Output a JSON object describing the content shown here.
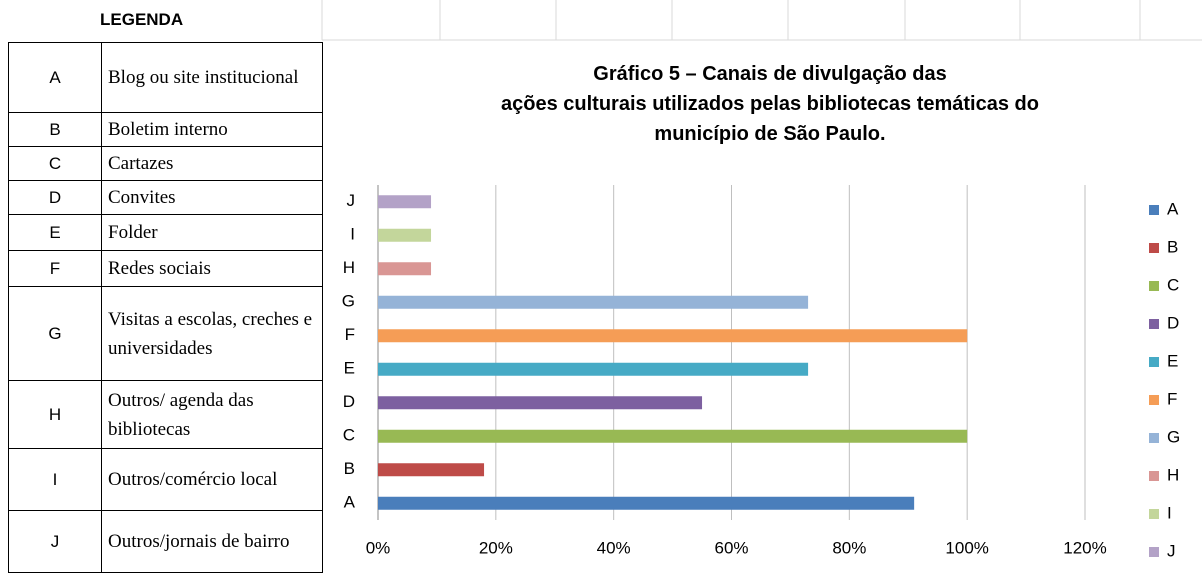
{
  "legend_table": {
    "header": "LEGENDA",
    "rows": [
      [
        "A",
        "Blog ou site institucional"
      ],
      [
        "B",
        "Boletim interno"
      ],
      [
        "C",
        "Cartazes"
      ],
      [
        "D",
        "Convites"
      ],
      [
        "E",
        "Folder"
      ],
      [
        "F",
        "Redes sociais"
      ],
      [
        "G",
        "Visitas a escolas, creches e universidades"
      ],
      [
        "H",
        "Outros/ agenda das bibliotecas"
      ],
      [
        "I",
        "Outros/comércio local"
      ],
      [
        "J",
        "Outros/jornais de bairro"
      ]
    ]
  },
  "chart_data": {
    "type": "bar",
    "orientation": "horizontal",
    "title": "Gráfico 5 – Canais de divulgação das ações culturais utilizados pelas bibliotecas temáticas do município de São Paulo.",
    "categories": [
      "A",
      "B",
      "C",
      "D",
      "E",
      "F",
      "G",
      "H",
      "I",
      "J"
    ],
    "values": [
      91,
      18,
      100,
      55,
      73,
      100,
      73,
      9,
      9,
      9
    ],
    "colors": [
      "#4a7ebb",
      "#be4b48",
      "#98b954",
      "#7d60a0",
      "#46aac5",
      "#f59d56",
      "#95b3d7",
      "#d99694",
      "#c3d69b",
      "#b3a2c7"
    ],
    "xlim": [
      0,
      120
    ],
    "xticks": [
      {
        "value": 0,
        "label": "0%"
      },
      {
        "value": 20,
        "label": "20%"
      },
      {
        "value": 40,
        "label": "40%"
      },
      {
        "value": 60,
        "label": "60%"
      },
      {
        "value": 80,
        "label": "80%"
      },
      {
        "value": 100,
        "label": "100%"
      },
      {
        "value": 120,
        "label": "120%"
      }
    ],
    "grid": true,
    "legend": "right"
  }
}
